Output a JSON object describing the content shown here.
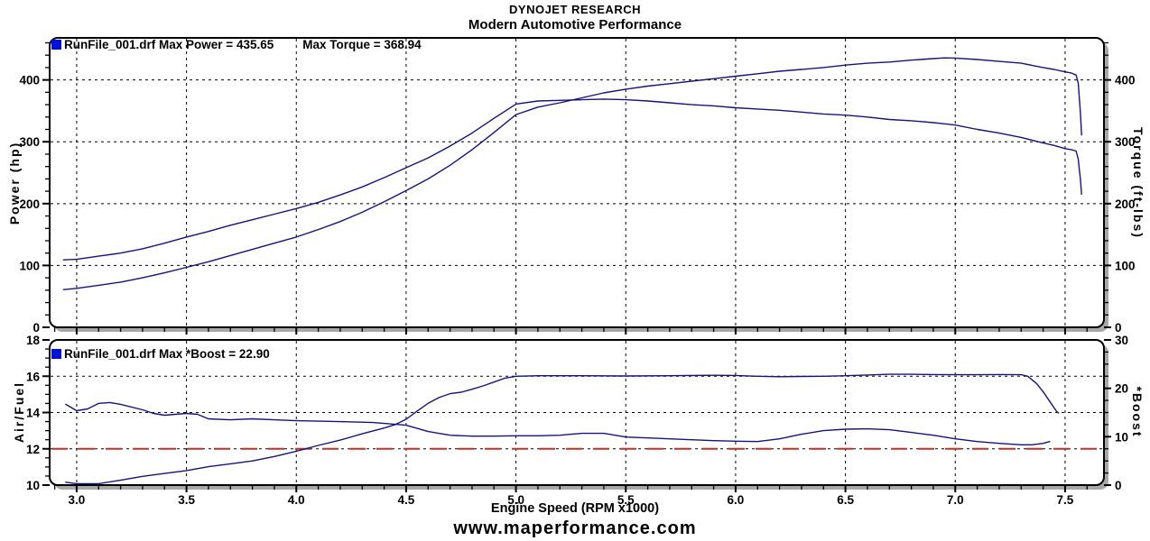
{
  "header": {
    "line1": "DYNOJET RESEARCH",
    "line2": "Modern Automotive Performance"
  },
  "footer": {
    "website": "www.maperformance.com"
  },
  "chart_data": [
    {
      "type": "line",
      "name": "power-torque-graph",
      "legend": {
        "marker_color": "#0011d6",
        "label": "RunFile_001.drf Max Power = 435.65",
        "label2": "Max Torque = 368.94"
      },
      "max_values": {
        "max_power_hp": 435.65,
        "max_torque_ftlbs": 368.94
      },
      "grid": true,
      "x_axis": {
        "range": [
          2.877,
          7.677
        ],
        "major_ticks": [
          3.0,
          3.5,
          4.0,
          4.5,
          5.0,
          5.5,
          6.0,
          6.5,
          7.0,
          7.5
        ],
        "tick_labels": [],
        "minor_step": 0.1,
        "show_tick_labels": false
      },
      "left_axis": {
        "title": "Power (hp)",
        "range": [
          0,
          468
        ],
        "ticks": [
          0,
          100,
          200,
          300,
          400
        ],
        "tick_labels": [
          "0",
          "100",
          "200",
          "300",
          "400"
        ],
        "minor_step": 20
      },
      "right_axis": {
        "title": "Torque (ft-lbs)",
        "range": [
          0,
          468
        ],
        "ticks": [
          0,
          100,
          200,
          300,
          400
        ],
        "tick_labels": [
          "0",
          "100",
          "200",
          "300",
          "400"
        ],
        "minor_step": 20
      },
      "series": [
        {
          "id": "power-curve",
          "name": "Power (hp)",
          "axis": "left",
          "color": "#14147c",
          "points": [
            [
              2.94,
              61
            ],
            [
              3,
              63
            ],
            [
              3.1,
              68
            ],
            [
              3.2,
              73
            ],
            [
              3.3,
              80
            ],
            [
              3.4,
              88
            ],
            [
              3.5,
              97
            ],
            [
              3.6,
              106
            ],
            [
              3.7,
              116
            ],
            [
              3.8,
              126
            ],
            [
              3.9,
              136
            ],
            [
              4,
              146
            ],
            [
              4.1,
              158
            ],
            [
              4.2,
              171
            ],
            [
              4.3,
              186
            ],
            [
              4.4,
              203
            ],
            [
              4.5,
              221
            ],
            [
              4.6,
              240
            ],
            [
              4.7,
              262
            ],
            [
              4.8,
              287
            ],
            [
              4.9,
              315
            ],
            [
              5,
              344
            ],
            [
              5.1,
              356
            ],
            [
              5.2,
              363
            ],
            [
              5.3,
              371
            ],
            [
              5.4,
              379
            ],
            [
              5.5,
              385
            ],
            [
              5.6,
              390
            ],
            [
              5.7,
              394
            ],
            [
              5.8,
              398
            ],
            [
              5.9,
              402
            ],
            [
              6,
              406
            ],
            [
              6.1,
              410
            ],
            [
              6.2,
              414
            ],
            [
              6.3,
              417
            ],
            [
              6.4,
              420
            ],
            [
              6.5,
              424
            ],
            [
              6.6,
              427
            ],
            [
              6.7,
              429
            ],
            [
              6.8,
              432
            ],
            [
              6.9,
              434.5
            ],
            [
              6.95,
              435.65
            ],
            [
              7,
              435.3
            ],
            [
              7.1,
              433
            ],
            [
              7.2,
              430
            ],
            [
              7.3,
              427
            ],
            [
              7.4,
              420
            ],
            [
              7.45,
              417
            ],
            [
              7.5,
              413
            ],
            [
              7.53,
              411
            ],
            [
              7.55,
              408
            ],
            [
              7.56,
              395
            ],
            [
              7.57,
              345
            ],
            [
              7.575,
              311
            ]
          ]
        },
        {
          "id": "torque-curve",
          "name": "Torque (ft-lbs)",
          "axis": "right",
          "color": "#14147c",
          "points": [
            [
              2.94,
              109
            ],
            [
              3,
              110
            ],
            [
              3.1,
              115
            ],
            [
              3.2,
              120
            ],
            [
              3.3,
              127
            ],
            [
              3.4,
              136
            ],
            [
              3.5,
              146
            ],
            [
              3.6,
              155
            ],
            [
              3.7,
              165
            ],
            [
              3.8,
              174
            ],
            [
              3.9,
              183
            ],
            [
              4,
              192
            ],
            [
              4.1,
              202
            ],
            [
              4.2,
              214
            ],
            [
              4.3,
              227
            ],
            [
              4.4,
              242
            ],
            [
              4.5,
              258
            ],
            [
              4.6,
              274
            ],
            [
              4.7,
              293
            ],
            [
              4.8,
              314
            ],
            [
              4.9,
              338
            ],
            [
              5,
              361
            ],
            [
              5.1,
              366
            ],
            [
              5.2,
              367
            ],
            [
              5.3,
              368
            ],
            [
              5.4,
              369
            ],
            [
              5.5,
              368
            ],
            [
              5.6,
              366
            ],
            [
              5.7,
              363
            ],
            [
              5.8,
              360
            ],
            [
              5.9,
              358
            ],
            [
              6,
              355
            ],
            [
              6.1,
              353
            ],
            [
              6.2,
              351
            ],
            [
              6.3,
              348
            ],
            [
              6.4,
              345
            ],
            [
              6.5,
              343
            ],
            [
              6.6,
              340
            ],
            [
              6.7,
              336
            ],
            [
              6.8,
              334
            ],
            [
              6.9,
              331
            ],
            [
              6.95,
              329
            ],
            [
              7,
              327
            ],
            [
              7.1,
              320
            ],
            [
              7.2,
              314
            ],
            [
              7.3,
              307
            ],
            [
              7.4,
              298
            ],
            [
              7.45,
              294
            ],
            [
              7.5,
              289
            ],
            [
              7.53,
              287
            ],
            [
              7.55,
              285
            ],
            [
              7.56,
              272
            ],
            [
              7.57,
              238
            ],
            [
              7.575,
              215
            ]
          ]
        }
      ]
    },
    {
      "type": "line",
      "name": "airfuel-boost-graph",
      "legend": {
        "marker_color": "#0011d6",
        "label": "RunFile_001.drf Max *Boost = 22.90"
      },
      "max_values": {
        "max_boost": 22.9
      },
      "grid": true,
      "x_axis": {
        "label": "Engine Speed (RPM x1000)",
        "range": [
          2.877,
          7.677
        ],
        "major_ticks": [
          3.0,
          3.5,
          4.0,
          4.5,
          5.0,
          5.5,
          6.0,
          6.5,
          7.0,
          7.5
        ],
        "tick_labels": [
          "3.0",
          "3.5",
          "4.0",
          "4.5",
          "5.0",
          "5.5",
          "6.0",
          "6.5",
          "7.0",
          "7.5"
        ],
        "minor_step": 0.1,
        "show_tick_labels": true
      },
      "left_axis": {
        "title": "Air/Fuel",
        "range": [
          10,
          18
        ],
        "ticks": [
          10,
          12,
          14,
          16,
          18
        ],
        "tick_labels": [
          "10",
          "12",
          "14",
          "16",
          "18"
        ],
        "minor_step": 0.5
      },
      "right_axis": {
        "title": "*Boost",
        "range": [
          0,
          30
        ],
        "ticks": [
          0,
          10,
          20,
          30
        ],
        "tick_labels": [
          "0",
          "10",
          "20",
          "30"
        ],
        "minor_step": 2.5
      },
      "target_line": {
        "axis": "left",
        "value": 12,
        "color": "#c23028"
      },
      "series": [
        {
          "id": "afr-curve",
          "name": "Air/Fuel",
          "axis": "left",
          "color": "#14147c",
          "points": [
            [
              2.95,
              14.45
            ],
            [
              3,
              14.1
            ],
            [
              3.05,
              14.2
            ],
            [
              3.1,
              14.5
            ],
            [
              3.15,
              14.55
            ],
            [
              3.2,
              14.45
            ],
            [
              3.3,
              14.15
            ],
            [
              3.35,
              13.95
            ],
            [
              3.4,
              13.85
            ],
            [
              3.5,
              13.95
            ],
            [
              3.55,
              13.9
            ],
            [
              3.6,
              13.65
            ],
            [
              3.7,
              13.6
            ],
            [
              3.8,
              13.65
            ],
            [
              3.9,
              13.6
            ],
            [
              4,
              13.55
            ],
            [
              4.2,
              13.5
            ],
            [
              4.35,
              13.45
            ],
            [
              4.5,
              13.3
            ],
            [
              4.6,
              12.95
            ],
            [
              4.7,
              12.75
            ],
            [
              4.8,
              12.7
            ],
            [
              4.9,
              12.7
            ],
            [
              5,
              12.72
            ],
            [
              5.1,
              12.72
            ],
            [
              5.2,
              12.75
            ],
            [
              5.3,
              12.85
            ],
            [
              5.4,
              12.85
            ],
            [
              5.5,
              12.65
            ],
            [
              5.6,
              12.6
            ],
            [
              5.7,
              12.55
            ],
            [
              5.8,
              12.5
            ],
            [
              5.9,
              12.45
            ],
            [
              6,
              12.42
            ],
            [
              6.1,
              12.4
            ],
            [
              6.2,
              12.55
            ],
            [
              6.3,
              12.8
            ],
            [
              6.4,
              13
            ],
            [
              6.5,
              13.08
            ],
            [
              6.6,
              13.1
            ],
            [
              6.7,
              13.05
            ],
            [
              6.8,
              12.9
            ],
            [
              6.9,
              12.75
            ],
            [
              7,
              12.55
            ],
            [
              7.1,
              12.4
            ],
            [
              7.2,
              12.3
            ],
            [
              7.3,
              12.22
            ],
            [
              7.35,
              12.22
            ],
            [
              7.4,
              12.3
            ],
            [
              7.43,
              12.4
            ]
          ]
        },
        {
          "id": "boost-curve",
          "name": "*Boost",
          "axis": "right",
          "color": "#14147c",
          "points": [
            [
              2.95,
              0.6
            ],
            [
              3,
              0.3
            ],
            [
              3.1,
              0.3
            ],
            [
              3.2,
              1
            ],
            [
              3.3,
              1.8
            ],
            [
              3.4,
              2.4
            ],
            [
              3.5,
              3
            ],
            [
              3.6,
              3.8
            ],
            [
              3.7,
              4.4
            ],
            [
              3.8,
              5
            ],
            [
              3.9,
              5.9
            ],
            [
              4,
              7
            ],
            [
              4.1,
              8.2
            ],
            [
              4.2,
              9.3
            ],
            [
              4.3,
              10.6
            ],
            [
              4.4,
              11.8
            ],
            [
              4.45,
              12.5
            ],
            [
              4.5,
              13.6
            ],
            [
              4.55,
              15.3
            ],
            [
              4.6,
              16.9
            ],
            [
              4.65,
              18.1
            ],
            [
              4.7,
              18.9
            ],
            [
              4.75,
              19.2
            ],
            [
              4.8,
              19.8
            ],
            [
              4.85,
              20.5
            ],
            [
              4.9,
              21.3
            ],
            [
              4.95,
              22.1
            ],
            [
              5,
              22.5
            ],
            [
              5.1,
              22.6
            ],
            [
              5.3,
              22.6
            ],
            [
              5.5,
              22.55
            ],
            [
              5.7,
              22.6
            ],
            [
              5.9,
              22.7
            ],
            [
              6,
              22.65
            ],
            [
              6.1,
              22.5
            ],
            [
              6.2,
              22.4
            ],
            [
              6.3,
              22.45
            ],
            [
              6.4,
              22.5
            ],
            [
              6.5,
              22.6
            ],
            [
              6.6,
              22.75
            ],
            [
              6.7,
              22.9
            ],
            [
              6.8,
              22.9
            ],
            [
              6.9,
              22.85
            ],
            [
              7,
              22.8
            ],
            [
              7.1,
              22.8
            ],
            [
              7.2,
              22.85
            ],
            [
              7.3,
              22.8
            ],
            [
              7.33,
              22.5
            ],
            [
              7.37,
              21
            ],
            [
              7.4,
              19.3
            ],
            [
              7.43,
              17.3
            ],
            [
              7.46,
              15.3
            ],
            [
              7.47,
              14.9
            ]
          ]
        }
      ]
    }
  ]
}
